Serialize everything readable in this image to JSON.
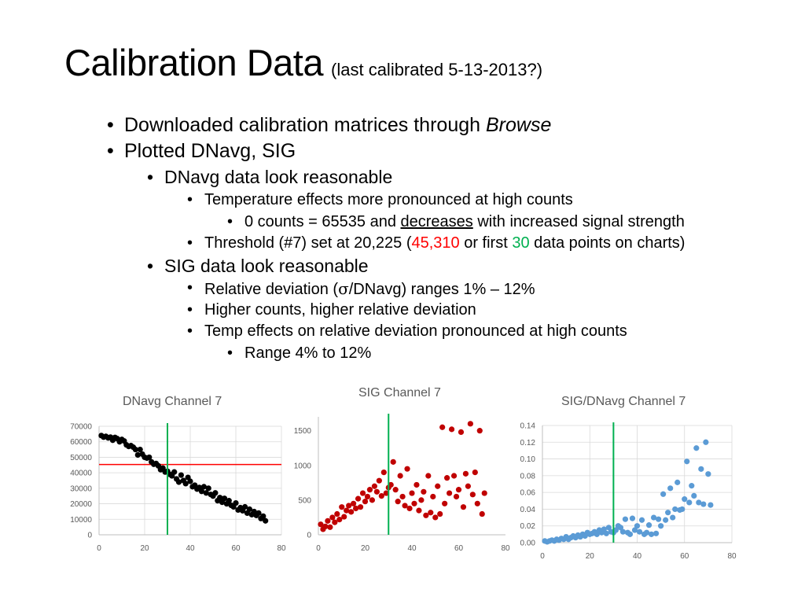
{
  "title": {
    "main": "Calibration Data",
    "sub": "(last calibrated 5-13-2013?)"
  },
  "bullets": {
    "b1": {
      "text": "Downloaded calibration matrices through ",
      "em": "Browse"
    },
    "b2": "Plotted DNavg, SIG",
    "b3": "DNavg data look reasonable",
    "b4": "Temperature effects more pronounced at high counts",
    "b5": {
      "pre": "0 counts = 65535 and ",
      "underline": "decreases",
      "post": " with increased signal strength"
    },
    "b6": {
      "pre": "Threshold (#7) set at 20,225 (",
      "red": "45,310",
      "mid": " or first ",
      "green": "30",
      "post": " data points on charts)"
    },
    "b7": "SIG data look reasonable",
    "b8": {
      "pre": "Relative deviation (",
      "sigma": "σ",
      "post": "/DNavg) ranges 1% – 12%"
    },
    "b9": "Higher counts, higher relative deviation",
    "b10": "Temp effects on relative deviation pronounced at high counts",
    "b11": "Range 4% to 12%",
    "dot": "•"
  },
  "colors": {
    "red": "#ff0000",
    "green": "#00b050",
    "darkred": "#c00000",
    "blue": "#5b9bd5",
    "black": "#000000",
    "grid": "#d9d9d9",
    "axis": "#bfbfbf",
    "text": "#595959"
  },
  "chart_data": [
    {
      "type": "scatter",
      "title": "DNavg Channel 7",
      "xlabel": "",
      "ylabel": "",
      "xlim": [
        0,
        80
      ],
      "ylim": [
        0,
        70000
      ],
      "xticks": [
        0,
        20,
        40,
        60,
        80
      ],
      "yticks": [
        0,
        10000,
        20000,
        30000,
        40000,
        50000,
        60000,
        70000
      ],
      "grid": true,
      "marker_color": "#000000",
      "hline": {
        "y": 45310,
        "color": "#ff0000"
      },
      "vline": {
        "x": 30,
        "color": "#00b050"
      },
      "x": [
        1,
        2,
        3,
        4,
        5,
        6,
        7,
        8,
        9,
        10,
        11,
        12,
        13,
        14,
        15,
        16,
        17,
        18,
        19,
        20,
        21,
        22,
        23,
        24,
        25,
        26,
        27,
        28,
        29,
        30,
        31,
        32,
        33,
        34,
        35,
        36,
        37,
        38,
        39,
        40,
        41,
        42,
        43,
        44,
        45,
        46,
        47,
        48,
        49,
        50,
        51,
        52,
        53,
        54,
        55,
        56,
        57,
        58,
        59,
        60,
        61,
        62,
        63,
        64,
        65,
        66,
        67,
        68,
        69,
        70,
        71,
        72,
        73
      ],
      "y": [
        64000,
        63000,
        63500,
        62500,
        63000,
        61000,
        62800,
        62000,
        60000,
        61500,
        60500,
        58000,
        57000,
        57500,
        56500,
        55000,
        51500,
        55000,
        52000,
        50000,
        49500,
        50000,
        47000,
        45500,
        46000,
        44500,
        42000,
        43000,
        40500,
        41000,
        39000,
        38000,
        40500,
        36000,
        34000,
        38500,
        35000,
        33000,
        37000,
        34500,
        31000,
        32000,
        29500,
        30500,
        28000,
        31000,
        27000,
        30000,
        26000,
        25000,
        27000,
        22000,
        24000,
        21000,
        23500,
        20000,
        22000,
        19000,
        18000,
        20500,
        16000,
        17500,
        15500,
        18000,
        14000,
        16500,
        13000,
        15000,
        12500,
        14000,
        10500,
        12000,
        9000
      ]
    },
    {
      "type": "scatter",
      "title": "SIG Channel 7",
      "xlabel": "",
      "ylabel": "",
      "xlim": [
        0,
        80
      ],
      "ylim": [
        0,
        1700
      ],
      "xticks": [
        0,
        20,
        40,
        60,
        80
      ],
      "yticks": [
        0,
        500,
        1000,
        1500
      ],
      "grid": false,
      "marker_color": "#c00000",
      "vline": {
        "x": 30,
        "color": "#00b050"
      },
      "x": [
        1,
        2,
        3,
        4,
        5,
        6,
        7,
        8,
        9,
        10,
        11,
        12,
        13,
        14,
        15,
        16,
        17,
        18,
        19,
        20,
        21,
        22,
        23,
        24,
        25,
        26,
        27,
        28,
        29,
        30,
        31,
        32,
        33,
        34,
        35,
        36,
        37,
        38,
        39,
        40,
        41,
        42,
        43,
        44,
        45,
        46,
        47,
        48,
        49,
        50,
        51,
        52,
        53,
        54,
        55,
        56,
        57,
        58,
        59,
        60,
        61,
        62,
        63,
        64,
        65,
        66,
        67,
        68,
        69,
        70,
        71
      ],
      "y": [
        150,
        80,
        120,
        200,
        110,
        250,
        180,
        300,
        220,
        400,
        260,
        350,
        420,
        330,
        450,
        380,
        520,
        400,
        600,
        480,
        550,
        650,
        500,
        700,
        620,
        780,
        560,
        900,
        600,
        680,
        720,
        1050,
        650,
        480,
        850,
        550,
        420,
        950,
        380,
        600,
        450,
        720,
        350,
        500,
        620,
        280,
        850,
        320,
        550,
        250,
        700,
        300,
        1550,
        450,
        820,
        600,
        1520,
        850,
        550,
        650,
        1480,
        400,
        880,
        700,
        1600,
        580,
        900,
        450,
        1500,
        300,
        600
      ],
      "labels_note": ""
    },
    {
      "type": "scatter",
      "title": "SIG/DNavg Channel 7",
      "xlabel": "",
      "ylabel": "",
      "xlim": [
        0,
        80
      ],
      "ylim": [
        0,
        0.14
      ],
      "xticks": [
        0,
        20,
        40,
        60,
        80
      ],
      "yticks": [
        0.0,
        0.02,
        0.04,
        0.06,
        0.08,
        0.1,
        0.12,
        0.14
      ],
      "ytick_labels": [
        "0.00",
        "0.02",
        "0.04",
        "0.06",
        "0.08",
        "0.10",
        "0.12",
        "0.14"
      ],
      "grid": true,
      "marker_color": "#5b9bd5",
      "vline": {
        "x": 30,
        "color": "#00b050"
      },
      "x": [
        1,
        2,
        3,
        4,
        5,
        6,
        7,
        8,
        9,
        10,
        11,
        12,
        13,
        14,
        15,
        16,
        17,
        18,
        19,
        20,
        21,
        22,
        23,
        24,
        25,
        26,
        27,
        28,
        29,
        30,
        31,
        32,
        33,
        34,
        35,
        36,
        37,
        38,
        39,
        40,
        41,
        42,
        43,
        44,
        45,
        46,
        47,
        48,
        49,
        50,
        51,
        52,
        53,
        54,
        55,
        56,
        57,
        58,
        59,
        60,
        61,
        62,
        63,
        64,
        65,
        66,
        67,
        68,
        69,
        70,
        71
      ],
      "y": [
        0.002,
        0.001,
        0.002,
        0.003,
        0.002,
        0.004,
        0.003,
        0.005,
        0.004,
        0.007,
        0.004,
        0.006,
        0.008,
        0.006,
        0.009,
        0.007,
        0.01,
        0.008,
        0.012,
        0.01,
        0.011,
        0.013,
        0.01,
        0.015,
        0.012,
        0.016,
        0.011,
        0.018,
        0.013,
        0.012,
        0.015,
        0.02,
        0.018,
        0.013,
        0.028,
        0.012,
        0.01,
        0.029,
        0.015,
        0.02,
        0.013,
        0.027,
        0.01,
        0.012,
        0.021,
        0.01,
        0.03,
        0.011,
        0.028,
        0.02,
        0.058,
        0.027,
        0.036,
        0.065,
        0.03,
        0.04,
        0.072,
        0.039,
        0.04,
        0.052,
        0.097,
        0.048,
        0.068,
        0.056,
        0.113,
        0.048,
        0.088,
        0.046,
        0.12,
        0.082,
        0.045
      ]
    }
  ]
}
